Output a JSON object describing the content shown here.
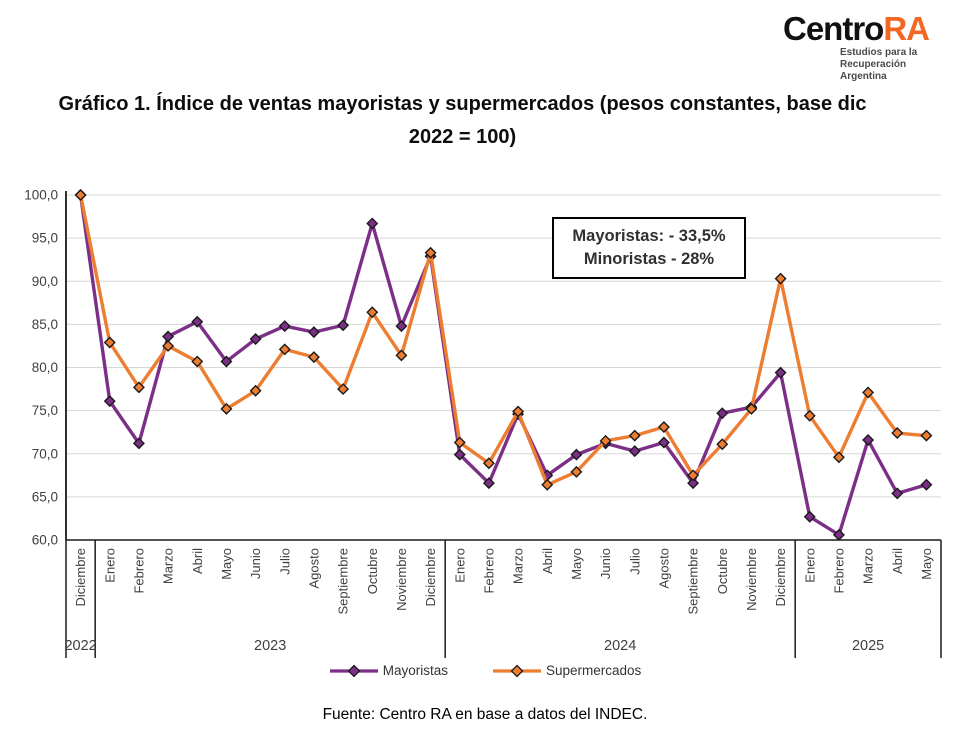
{
  "logo": {
    "brand_black": "Centro",
    "brand_orange": "RA",
    "tagline_line1": "Estudios para la",
    "tagline_line2": "Recuperación Argentina",
    "accent_color": "#F26722"
  },
  "title": {
    "line1": "Gráfico 1. Índice de ventas mayoristas y supermercados (pesos constantes, base dic",
    "line2": "2022 = 100)"
  },
  "annotation": {
    "line1": "Mayoristas: - 33,5%",
    "line2": "Minoristas - 28%"
  },
  "legend": [
    {
      "label": "Mayoristas",
      "color": "#7C2F87"
    },
    {
      "label": "Supermercados",
      "color": "#ED7D31"
    }
  ],
  "footer": "Fuente: Centro RA en base a datos del INDEC.",
  "chart_data": {
    "type": "line",
    "title": "Gráfico 1. Índice de ventas mayoristas y supermercados (pesos constantes, base dic 2022 = 100)",
    "ylim": [
      60,
      100
    ],
    "ytick_step": 5,
    "ytick_labels": [
      "100,0",
      "95,0",
      "90,0",
      "85,0",
      "80,0",
      "75,0",
      "70,0",
      "65,0",
      "60,0"
    ],
    "grid": true,
    "legend_position": "bottom",
    "groups": [
      {
        "year": "2022",
        "months": [
          "Diciembre"
        ]
      },
      {
        "year": "2023",
        "months": [
          "Enero",
          "Febrero",
          "Marzo",
          "Abril",
          "Mayo",
          "Junio",
          "Julio",
          "Agosto",
          "Septiembre",
          "Octubre",
          "Noviembre",
          "Diciembre"
        ]
      },
      {
        "year": "2024",
        "months": [
          "Enero",
          "Febrero",
          "Marzo",
          "Abril",
          "Mayo",
          "Junio",
          "Julio",
          "Agosto",
          "Septiembre",
          "Octubre",
          "Noviembre",
          "Diciembre"
        ]
      },
      {
        "year": "2025",
        "months": [
          "Enero",
          "Febrero",
          "Marzo",
          "Abril",
          "Mayo"
        ]
      }
    ],
    "series": [
      {
        "name": "Mayoristas",
        "color": "#7C2F87",
        "values": [
          100.0,
          76.1,
          71.2,
          83.6,
          85.3,
          80.7,
          83.3,
          84.8,
          84.1,
          84.9,
          96.7,
          84.8,
          92.9,
          69.9,
          66.6,
          74.6,
          67.5,
          69.9,
          71.2,
          70.3,
          71.3,
          66.6,
          74.7,
          75.4,
          79.4,
          62.7,
          60.6,
          71.6,
          65.4,
          66.4
        ]
      },
      {
        "name": "Supermercados",
        "color": "#ED7D31",
        "values": [
          100.0,
          82.9,
          77.7,
          82.5,
          80.7,
          75.2,
          77.3,
          82.1,
          81.2,
          77.5,
          86.4,
          81.4,
          93.3,
          71.3,
          68.9,
          74.9,
          66.4,
          67.9,
          71.5,
          72.1,
          73.1,
          67.5,
          71.1,
          75.2,
          90.3,
          74.4,
          69.6,
          77.1,
          72.4,
          72.1
        ]
      }
    ],
    "style": {
      "gridline_color": "#D6D6D6",
      "axis_color": "#1A1A1A",
      "tick_label_color": "#404040"
    }
  }
}
